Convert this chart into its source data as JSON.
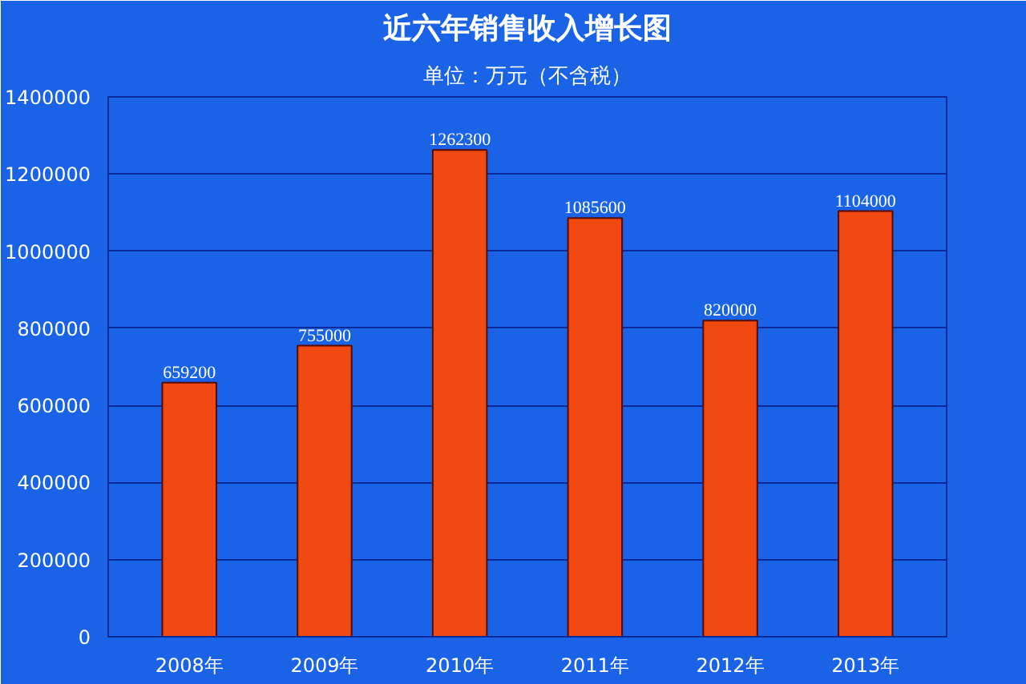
{
  "chart_data": {
    "type": "bar",
    "title": "近六年销售收入增长图",
    "subtitle": "单位：万元（不含税）",
    "categories": [
      "2008年",
      "2009年",
      "2010年",
      "2011年",
      "2012年",
      "2013年"
    ],
    "values": [
      659200,
      755000,
      1262300,
      1085600,
      820000,
      1104000
    ],
    "color": "#f04a12",
    "ylim": [
      0,
      1400000
    ],
    "yticks": [
      0,
      200000,
      400000,
      600000,
      800000,
      1000000,
      1200000,
      1400000
    ],
    "grid": "y",
    "data_labels": true
  }
}
